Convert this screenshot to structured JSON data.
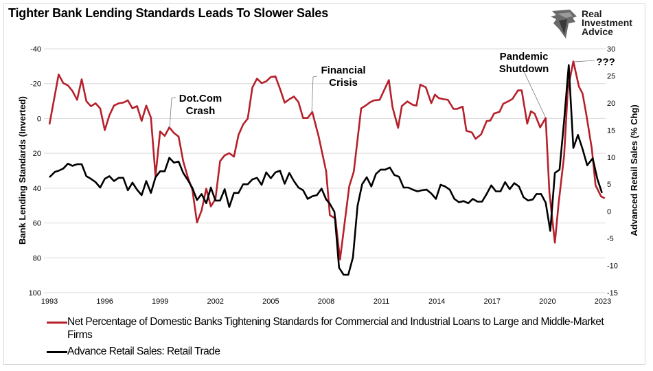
{
  "title": "Tighter Bank Lending Standards Leads To Slower Sales",
  "logo": {
    "name": "Real Investment Advice",
    "lines": [
      "Real",
      "Investment",
      "Advice"
    ],
    "icon": "eagle-head-icon"
  },
  "chart_data": {
    "type": "line",
    "title": "Tighter Bank Lending Standards Leads To Slower Sales",
    "xlabel": "",
    "x_ticks": [
      "1993",
      "1996",
      "1999",
      "2002",
      "2005",
      "2008",
      "2011",
      "2014",
      "2017",
      "2020",
      "2023"
    ],
    "xlim": [
      1993,
      2023
    ],
    "y_left": {
      "label": "Bank Lending Standards (Inverted)",
      "range": [
        -40,
        100
      ],
      "inverted": true,
      "ticks": [
        "-40",
        "-20",
        "0",
        "20",
        "40",
        "60",
        "80",
        "100"
      ]
    },
    "y_right": {
      "label": "Advanced Retail Sales (% Chg)",
      "range": [
        -15,
        30
      ],
      "ticks": [
        "30",
        "25",
        "20",
        "15",
        "10",
        "5",
        "0",
        "-5",
        "-10",
        "-15"
      ]
    },
    "grid": "horizontal",
    "legend_position": "bottom",
    "series": [
      {
        "name": "Net Percentage of Domestic Banks Tightening Standards for Commercial and Industrial Loans to Large and Middle-Market Firms",
        "axis": "left",
        "color": "#b5202a",
        "points": [
          [
            1993.0,
            3.4
          ],
          [
            1993.5,
            -25.2
          ],
          [
            1993.75,
            -20.3
          ],
          [
            1994.0,
            -19
          ],
          [
            1994.25,
            -15.7
          ],
          [
            1994.5,
            -10.7
          ],
          [
            1994.75,
            -22.5
          ],
          [
            1995.0,
            -10
          ],
          [
            1995.25,
            -7
          ],
          [
            1995.5,
            -8.7
          ],
          [
            1995.75,
            -5.8
          ],
          [
            1996.0,
            6.7
          ],
          [
            1996.25,
            -1.8
          ],
          [
            1996.5,
            -7.4
          ],
          [
            1996.75,
            -8.7
          ],
          [
            1997.0,
            -9.1
          ],
          [
            1997.25,
            -10.4
          ],
          [
            1997.5,
            -5.8
          ],
          [
            1997.75,
            -7.1
          ],
          [
            1998.0,
            1.4
          ],
          [
            1998.25,
            -7.4
          ],
          [
            1998.5,
            -0.5
          ],
          [
            1998.75,
            33
          ],
          [
            1999.0,
            7.4
          ],
          [
            1999.25,
            10
          ],
          [
            1999.5,
            5.1
          ],
          [
            1999.75,
            8.3
          ],
          [
            2000.0,
            10.4
          ],
          [
            2000.25,
            24.5
          ],
          [
            2000.5,
            33.7
          ],
          [
            2000.75,
            41
          ],
          [
            2001.0,
            59.7
          ],
          [
            2001.25,
            52.8
          ],
          [
            2001.5,
            40.3
          ],
          [
            2001.75,
            50.5
          ],
          [
            2002.0,
            46.2
          ],
          [
            2002.25,
            24.5
          ],
          [
            2002.5,
            21.2
          ],
          [
            2002.75,
            19.9
          ],
          [
            2003.0,
            21.9
          ],
          [
            2003.25,
            9.4
          ],
          [
            2003.5,
            3.4
          ],
          [
            2003.75,
            0.1
          ],
          [
            2004.0,
            -17.7
          ],
          [
            2004.25,
            -22.9
          ],
          [
            2004.5,
            -20.3
          ],
          [
            2004.75,
            -21.3
          ],
          [
            2005.0,
            -23.8
          ],
          [
            2005.25,
            -24.2
          ],
          [
            2005.5,
            -17
          ],
          [
            2005.75,
            -9.1
          ],
          [
            2006.0,
            -11
          ],
          [
            2006.25,
            -12.6
          ],
          [
            2006.5,
            -9.4
          ],
          [
            2006.75,
            -0.3
          ],
          [
            2007.0,
            -0.3
          ],
          [
            2007.25,
            -3.7
          ],
          [
            2007.6,
            10.7
          ],
          [
            2008.0,
            30.4
          ],
          [
            2008.2,
            55.5
          ],
          [
            2008.5,
            57.4
          ],
          [
            2008.75,
            81
          ],
          [
            2009.25,
            39
          ],
          [
            2009.5,
            30.4
          ],
          [
            2009.9,
            -5.8
          ],
          [
            2010.1,
            -7.1
          ],
          [
            2010.4,
            -9.4
          ],
          [
            2010.6,
            -10.4
          ],
          [
            2010.9,
            -10.7
          ],
          [
            2011.4,
            -22
          ],
          [
            2011.6,
            -6.4
          ],
          [
            2011.9,
            5.4
          ],
          [
            2012.1,
            -7.1
          ],
          [
            2012.4,
            -9.8
          ],
          [
            2012.7,
            -7.8
          ],
          [
            2012.9,
            -7.4
          ],
          [
            2013.1,
            -19.4
          ],
          [
            2013.4,
            -17.9
          ],
          [
            2013.7,
            -8.8
          ],
          [
            2013.9,
            -13.7
          ],
          [
            2014.1,
            -11.7
          ],
          [
            2014.4,
            -11
          ],
          [
            2014.6,
            -10.7
          ],
          [
            2014.9,
            -5.5
          ],
          [
            2015.1,
            -5.5
          ],
          [
            2015.4,
            -6.8
          ],
          [
            2015.6,
            7.1
          ],
          [
            2015.9,
            8
          ],
          [
            2016.1,
            11.7
          ],
          [
            2016.4,
            9.1
          ],
          [
            2016.7,
            1.5
          ],
          [
            2016.9,
            1.2
          ],
          [
            2017.1,
            -2.8
          ],
          [
            2017.4,
            -3.8
          ],
          [
            2017.6,
            -8.4
          ],
          [
            2017.9,
            -10
          ],
          [
            2018.1,
            -11.3
          ],
          [
            2018.4,
            -16.1
          ],
          [
            2018.6,
            -16.1
          ],
          [
            2018.9,
            3
          ],
          [
            2019.1,
            -4.1
          ],
          [
            2019.3,
            -2.8
          ],
          [
            2019.6,
            5.1
          ],
          [
            2019.9,
            -0.3
          ],
          [
            2020.1,
            42.3
          ],
          [
            2020.4,
            71.3
          ],
          [
            2020.6,
            48.9
          ],
          [
            2020.9,
            21.2
          ],
          [
            2021.1,
            -17
          ],
          [
            2021.4,
            -32.8
          ],
          [
            2021.7,
            -18.3
          ],
          [
            2021.9,
            -14.3
          ],
          [
            2022.1,
            -2.5
          ],
          [
            2022.4,
            17.3
          ],
          [
            2022.6,
            38.3
          ],
          [
            2022.9,
            44.7
          ],
          [
            2023.1,
            45.8
          ]
        ]
      },
      {
        "name": "Advance Retail Sales: Retail Trade",
        "axis": "right",
        "color": "#000000",
        "points": [
          [
            1993.0,
            6.3
          ],
          [
            1993.3,
            7.3
          ],
          [
            1993.5,
            7.5
          ],
          [
            1993.75,
            7.9
          ],
          [
            1994.0,
            8.8
          ],
          [
            1994.25,
            8.4
          ],
          [
            1994.5,
            8.7
          ],
          [
            1994.75,
            8.7
          ],
          [
            1995.0,
            6.5
          ],
          [
            1995.25,
            6.0
          ],
          [
            1995.5,
            5.4
          ],
          [
            1995.75,
            4.4
          ],
          [
            1996.0,
            6.0
          ],
          [
            1996.25,
            6.5
          ],
          [
            1996.5,
            5.6
          ],
          [
            1996.75,
            6.2
          ],
          [
            1997.0,
            6.2
          ],
          [
            1997.25,
            3.9
          ],
          [
            1997.5,
            5.3
          ],
          [
            1997.75,
            4.0
          ],
          [
            1998.0,
            3.0
          ],
          [
            1998.25,
            5.6
          ],
          [
            1998.5,
            3.4
          ],
          [
            1998.75,
            6.3
          ],
          [
            1999.0,
            7.4
          ],
          [
            1999.25,
            7.4
          ],
          [
            1999.5,
            9.9
          ],
          [
            1999.75,
            9.0
          ],
          [
            2000.0,
            9.2
          ],
          [
            2000.25,
            7.1
          ],
          [
            2000.5,
            5.8
          ],
          [
            2000.75,
            4.3
          ],
          [
            2001.0,
            2.1
          ],
          [
            2001.25,
            3.2
          ],
          [
            2001.5,
            1.5
          ],
          [
            2001.75,
            4.4
          ],
          [
            2002.0,
            2.0
          ],
          [
            2002.25,
            2.0
          ],
          [
            2002.5,
            4.1
          ],
          [
            2002.75,
            0.8
          ],
          [
            2003.0,
            3.4
          ],
          [
            2003.25,
            3.4
          ],
          [
            2003.5,
            5.0
          ],
          [
            2003.75,
            5.0
          ],
          [
            2004.0,
            5.9
          ],
          [
            2004.25,
            6.2
          ],
          [
            2004.5,
            4.9
          ],
          [
            2004.75,
            7.2
          ],
          [
            2005.0,
            6.1
          ],
          [
            2005.25,
            7.2
          ],
          [
            2005.5,
            7.5
          ],
          [
            2005.75,
            5.1
          ],
          [
            2006.0,
            7.1
          ],
          [
            2006.25,
            5.6
          ],
          [
            2006.5,
            4.4
          ],
          [
            2006.75,
            3.9
          ],
          [
            2007.0,
            2.3
          ],
          [
            2007.25,
            2.8
          ],
          [
            2007.5,
            3.0
          ],
          [
            2007.75,
            4.2
          ],
          [
            2008.0,
            2.2
          ],
          [
            2008.2,
            1.4
          ],
          [
            2008.45,
            -0.1
          ],
          [
            2008.7,
            -10.4
          ],
          [
            2008.95,
            -11.7
          ],
          [
            2009.2,
            -11.7
          ],
          [
            2009.45,
            -8.5
          ],
          [
            2009.7,
            1.0
          ],
          [
            2009.95,
            5.0
          ],
          [
            2010.2,
            6.3
          ],
          [
            2010.45,
            4.6
          ],
          [
            2010.7,
            6.9
          ],
          [
            2010.95,
            7.7
          ],
          [
            2011.2,
            7.7
          ],
          [
            2011.45,
            8.1
          ],
          [
            2011.7,
            6.7
          ],
          [
            2011.95,
            6.4
          ],
          [
            2012.2,
            4.4
          ],
          [
            2012.45,
            4.4
          ],
          [
            2012.7,
            4.0
          ],
          [
            2012.95,
            3.7
          ],
          [
            2013.2,
            3.9
          ],
          [
            2013.45,
            4.0
          ],
          [
            2013.7,
            3.3
          ],
          [
            2013.95,
            2.3
          ],
          [
            2014.2,
            4.9
          ],
          [
            2014.45,
            4.6
          ],
          [
            2014.7,
            4.0
          ],
          [
            2014.95,
            2.3
          ],
          [
            2015.2,
            1.7
          ],
          [
            2015.45,
            1.9
          ],
          [
            2015.7,
            1.5
          ],
          [
            2015.95,
            2.3
          ],
          [
            2016.2,
            1.8
          ],
          [
            2016.45,
            1.8
          ],
          [
            2016.7,
            3.2
          ],
          [
            2016.95,
            4.8
          ],
          [
            2017.2,
            3.7
          ],
          [
            2017.45,
            3.7
          ],
          [
            2017.7,
            5.4
          ],
          [
            2017.95,
            4.1
          ],
          [
            2018.2,
            5.2
          ],
          [
            2018.45,
            4.6
          ],
          [
            2018.7,
            2.6
          ],
          [
            2018.95,
            2.0
          ],
          [
            2019.2,
            2.2
          ],
          [
            2019.4,
            3.2
          ],
          [
            2019.65,
            3.2
          ],
          [
            2019.9,
            1.6
          ],
          [
            2020.15,
            -3.6
          ],
          [
            2020.4,
            7.1
          ],
          [
            2020.65,
            7.7
          ],
          [
            2020.9,
            16.8
          ],
          [
            2021.15,
            27.0
          ],
          [
            2021.4,
            11.7
          ],
          [
            2021.65,
            14.1
          ],
          [
            2021.9,
            11.5
          ],
          [
            2022.15,
            8.5
          ],
          [
            2022.45,
            9.8
          ],
          [
            2022.7,
            6.0
          ],
          [
            2022.95,
            3.4
          ]
        ]
      }
    ],
    "annotations": [
      {
        "lines": [
          "Dot.Com",
          "Crash"
        ]
      },
      {
        "lines": [
          "Financial",
          "Crisis"
        ]
      },
      {
        "lines": [
          "Pandemic",
          "Shutdown"
        ]
      },
      {
        "lines": [
          "???"
        ]
      }
    ]
  }
}
